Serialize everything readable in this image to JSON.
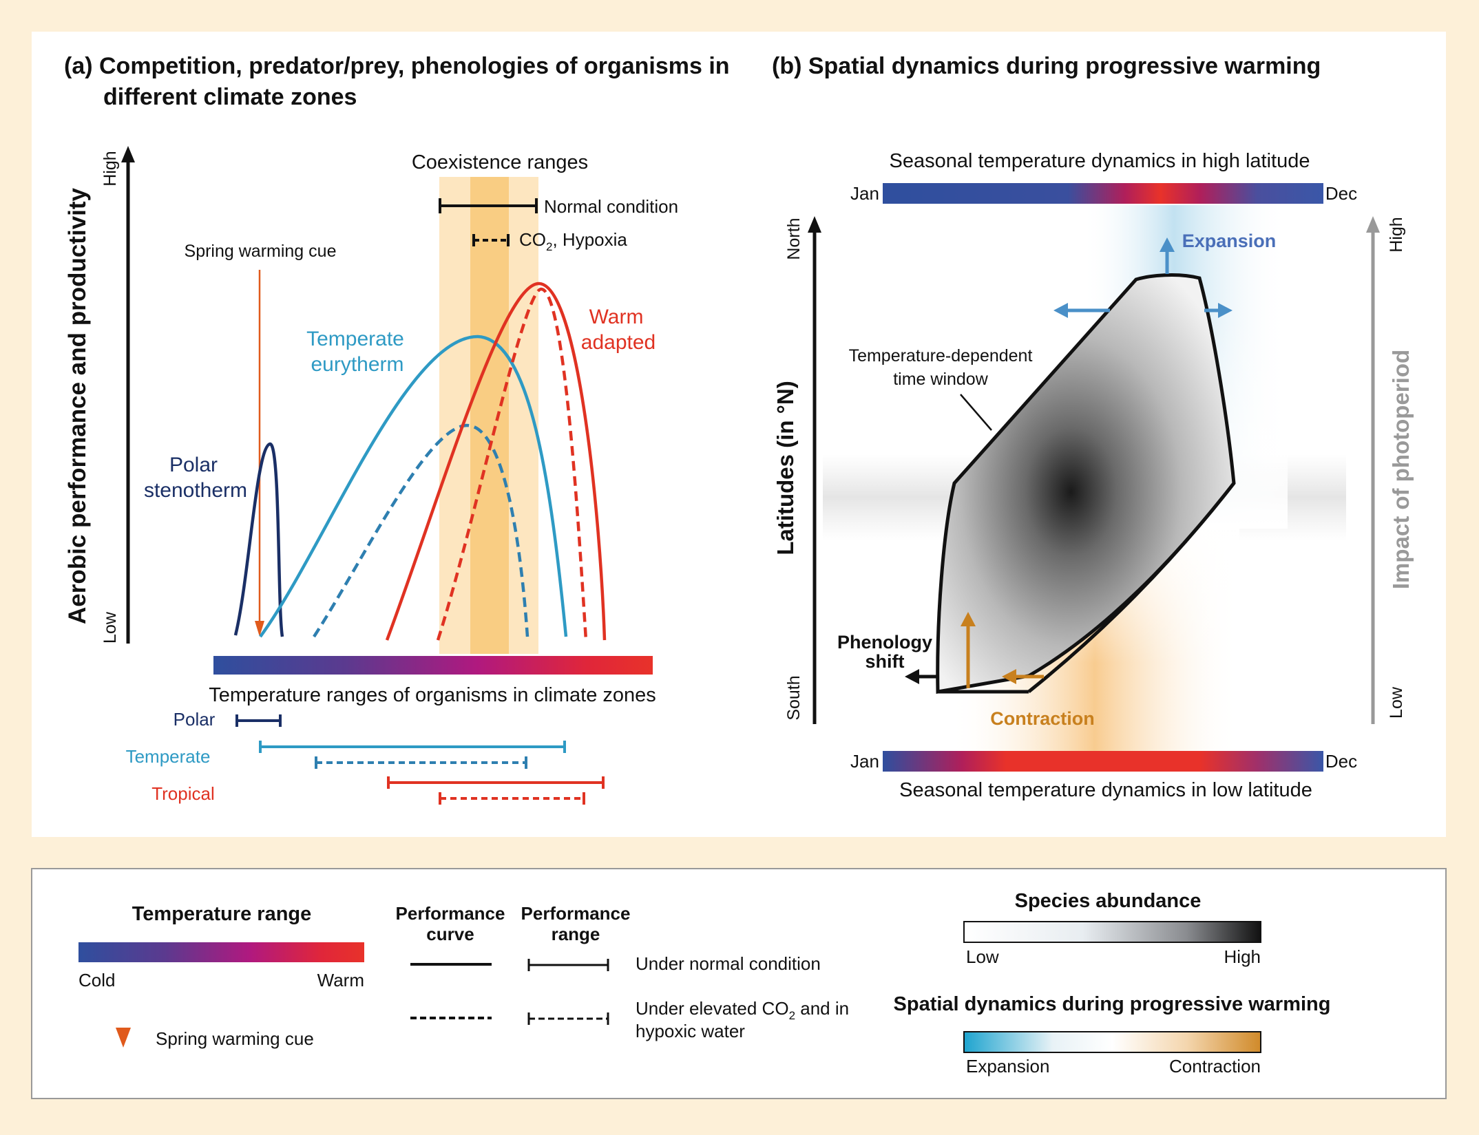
{
  "panel_a": {
    "title_line1": "(a) Competition, predator/prey, phenologies of organisms in",
    "title_line2": "different climate zones",
    "y_axis_label": "Aerobic performance and productivity",
    "y_high": "High",
    "y_low": "Low",
    "coexistence_title": "Coexistence ranges",
    "normal_condition": "Normal condition",
    "co2_text": "CO",
    "co2_sub": "2",
    "co2_rest": ", Hypoxia",
    "spring_cue": "Spring warming cue",
    "label_polar_1": "Polar",
    "label_polar_2": "stenotherm",
    "label_temperate_1": "Temperate",
    "label_temperate_2": "eurytherm",
    "label_warm_1": "Warm",
    "label_warm_2": "adapted",
    "x_caption": "Temperature ranges of organisms in climate zones",
    "range_polar": "Polar",
    "range_temperate": "Temperate",
    "range_tropical": "Tropical"
  },
  "panel_b": {
    "title": "(b) Spatial dynamics during progressive warming",
    "top_caption": "Seasonal temperature dynamics in high latitude",
    "bottom_caption": "Seasonal temperature dynamics in low latitude",
    "jan": "Jan",
    "dec": "Dec",
    "y_axis_label": "Latitudes (in °N)",
    "north": "North",
    "south": "South",
    "right_axis_label": "Impact of photoperiod",
    "right_high": "High",
    "right_low": "Low",
    "window_label_1": "Temperature-dependent",
    "window_label_2": "time window",
    "phenology_1": "Phenology",
    "phenology_2": "shift",
    "expansion": "Expansion",
    "contraction": "Contraction"
  },
  "legend": {
    "temperature_range": "Temperature range",
    "cold": "Cold",
    "warm": "Warm",
    "spring_cue": "Spring warming cue",
    "perf_curve_1": "Performance",
    "perf_curve_2": "curve",
    "perf_range_1": "Performance",
    "perf_range_2": "range",
    "under_normal": "Under normal condition",
    "under_elevated_1": "Under elevated CO",
    "under_elevated_sub": "2",
    "under_elevated_2": " and in",
    "under_elevated_3": "hypoxic water",
    "species_abundance": "Species abundance",
    "low": "Low",
    "high": "High",
    "spatial_dynamics": "Spatial dynamics during progressive warming",
    "expansion": "Expansion",
    "contraction": "Contraction"
  },
  "colors": {
    "polar": "#1a2f66",
    "temperate": "#2e9ac4",
    "warm": "#e03222",
    "cue": "#e05a1c",
    "expansion": "#4a90c8",
    "contraction": "#c8801e",
    "coexist_light": "#fde6c0",
    "coexist_dark": "#f9cd83"
  }
}
